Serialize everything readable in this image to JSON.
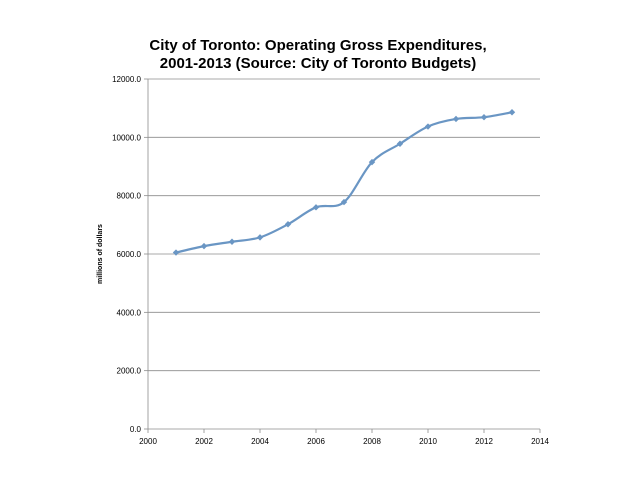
{
  "chart_data": {
    "type": "line",
    "title_lines": [
      "City of Toronto: Operating Gross Expenditures,",
      "2001-2013 (Source: City of Toronto Budgets)"
    ],
    "xlabel": "",
    "ylabel": "millions of dollars",
    "xlim": [
      2000,
      2014
    ],
    "ylim": [
      0,
      12000
    ],
    "x_ticks": [
      2000,
      2002,
      2004,
      2006,
      2008,
      2010,
      2012,
      2014
    ],
    "y_ticks": [
      0,
      2000,
      4000,
      6000,
      8000,
      10000,
      12000
    ],
    "y_tick_labels": [
      "0.0",
      "2000.0",
      "4000.0",
      "6000.0",
      "8000.0",
      "10000.0",
      "12000.0"
    ],
    "grid": "horizontal",
    "series": [
      {
        "name": "Operating Gross Expenditures",
        "color": "#6a96c4",
        "x": [
          2001,
          2002,
          2003,
          2004,
          2005,
          2006,
          2007,
          2008,
          2009,
          2010,
          2011,
          2012,
          2013
        ],
        "y": [
          6050,
          6270,
          6420,
          6570,
          7020,
          7600,
          7780,
          9150,
          9780,
          10370,
          10630,
          10690,
          10860
        ]
      }
    ]
  }
}
